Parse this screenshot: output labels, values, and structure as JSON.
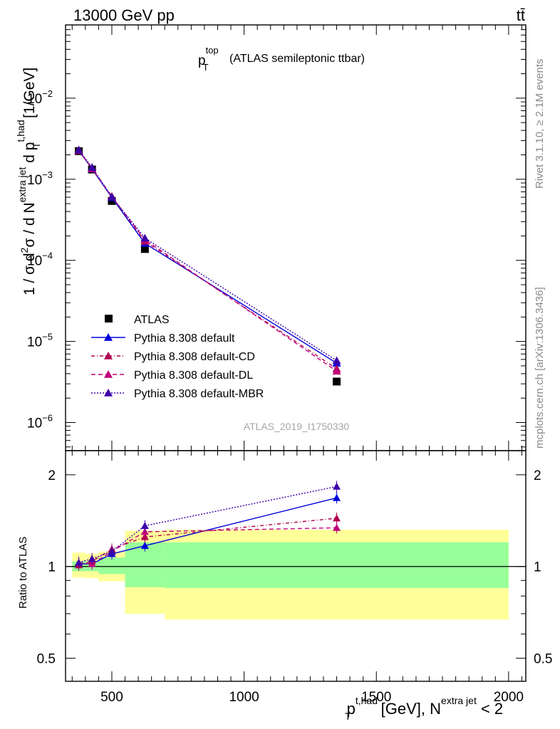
{
  "header": {
    "energy_label": "13000 GeV pp",
    "process_label": "tt̄"
  },
  "side_labels": {
    "rivet": "Rivet 3.1.10, ≥ 2.1M events",
    "mcplots": "mcplots.cern.ch [arXiv:1306.3436]"
  },
  "watermark": "ATLAS_2019_I1750330",
  "colors": {
    "data": "#000000",
    "default": "#0000dd",
    "cd": "#b0004f",
    "dl": "#c0007a",
    "mbr": "#3b00a8",
    "band_inner": "#99ff99",
    "band_outer": "#ffff99"
  },
  "chart_data": [
    {
      "type": "scatter",
      "scale": "log",
      "title": {
        "base": "p",
        "sup": "top",
        "sub": "T",
        "rest": "(ATLAS semileptonic ttbar)"
      },
      "ylabel": "1 / σ d²σ / d N^extra jet d p_T^t,had [1/GeV]",
      "ylabel_parts": {
        "a": "1 / σ d",
        "b": "2",
        "c": "σ /  d N",
        "d": "extra jet",
        "e": " d p",
        "f": "t,had",
        "g": "T",
        "h": " [1/GeV]"
      },
      "xlim": [
        325,
        2065
      ],
      "ylim": [
        4.5e-07,
        0.08
      ],
      "y_ticks": [
        {
          "value": 1e-06,
          "base": "10",
          "exp": "−6"
        },
        {
          "value": 1e-05,
          "base": "10",
          "exp": "−5"
        },
        {
          "value": 0.0001,
          "base": "10",
          "exp": "−4"
        },
        {
          "value": 0.001,
          "base": "10",
          "exp": "−3"
        },
        {
          "value": 0.01,
          "base": "10",
          "exp": "−2"
        }
      ],
      "x": [
        375,
        425,
        500,
        625,
        1350
      ],
      "x_edges": [
        [
          350,
          400
        ],
        [
          400,
          450
        ],
        [
          450,
          550
        ],
        [
          550,
          700
        ],
        [
          700,
          2000
        ]
      ],
      "series": [
        {
          "key": "data",
          "name": "ATLAS",
          "marker": "square",
          "dash": "",
          "values": [
            0.00222,
            0.00132,
            0.00054,
            0.000138,
            3.2e-06
          ]
        },
        {
          "key": "default",
          "name": "Pythia 8.308 default",
          "marker": "triangle",
          "dash": "",
          "values": [
            0.00227,
            0.00134,
            0.000595,
            0.000162,
            5.4e-06
          ]
        },
        {
          "key": "cd",
          "name": "Pythia 8.308 default-CD",
          "marker": "triangle",
          "dash": "5,3,1,3",
          "values": [
            0.00224,
            0.00137,
            0.000615,
            0.000172,
            4.6e-06
          ]
        },
        {
          "key": "dl",
          "name": "Pythia 8.308 default-DL",
          "marker": "triangle",
          "dash": "6,4",
          "values": [
            0.0023,
            0.00135,
            0.000605,
            0.00018,
            4.3e-06
          ]
        },
        {
          "key": "mbr",
          "name": "Pythia 8.308 default-MBR",
          "marker": "triangle",
          "dash": "2,2",
          "values": [
            0.00229,
            0.0014,
            0.000605,
            0.000188,
            5.8e-06
          ]
        }
      ]
    },
    {
      "type": "scatter",
      "scale": "log",
      "ylabel": "Ratio to ATLAS",
      "xlabel_parts": {
        "a": "p",
        "b": "t,had",
        "c": "T",
        "d": " [GeV], N",
        "e": "extra jet",
        "f": " < 2"
      },
      "xlim": [
        325,
        2065
      ],
      "ylim": [
        0.42,
        2.4
      ],
      "x_ticks": [
        500,
        1000,
        1500,
        2000
      ],
      "y_ticks": [
        0.5,
        1,
        2
      ],
      "bands": [
        {
          "x0": 350,
          "x1": 400,
          "inner": [
            0.965,
            1.04
          ],
          "outer": [
            0.92,
            1.11
          ]
        },
        {
          "x0": 400,
          "x1": 450,
          "inner": [
            0.965,
            1.04
          ],
          "outer": [
            0.915,
            1.1
          ]
        },
        {
          "x0": 450,
          "x1": 550,
          "inner": [
            0.945,
            1.07
          ],
          "outer": [
            0.895,
            1.12
          ]
        },
        {
          "x0": 550,
          "x1": 700,
          "inner": [
            0.855,
            1.2
          ],
          "outer": [
            0.7,
            1.31
          ]
        },
        {
          "x0": 700,
          "x1": 2000,
          "inner": [
            0.85,
            1.2
          ],
          "outer": [
            0.67,
            1.32
          ]
        }
      ],
      "series": [
        {
          "key": "default",
          "values": [
            1.02,
            1.02,
            1.1,
            1.17,
            1.68
          ]
        },
        {
          "key": "cd",
          "values": [
            1.01,
            1.04,
            1.14,
            1.25,
            1.44
          ]
        },
        {
          "key": "dl",
          "values": [
            1.03,
            1.02,
            1.12,
            1.3,
            1.34
          ]
        },
        {
          "key": "mbr",
          "values": [
            1.03,
            1.06,
            1.12,
            1.36,
            1.83
          ]
        }
      ]
    }
  ]
}
